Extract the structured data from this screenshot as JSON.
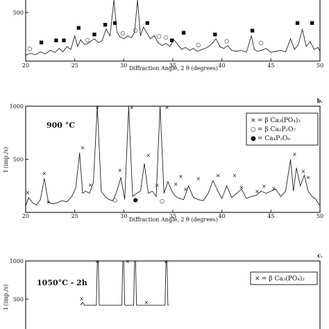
{
  "chart_data": [
    {
      "type": "line",
      "panel_label": "",
      "xlabel": "Diffraction Angle, 2 θ (degrees)",
      "ylabel": "",
      "xlim": [
        20,
        50
      ],
      "ylim": [
        0,
        700
      ],
      "x_ticks": [
        20,
        25,
        30,
        35,
        40,
        45,
        50
      ],
      "y_ticks": [
        500
      ],
      "temperature_label": "",
      "series": [
        {
          "x": [
            20,
            20.5,
            21,
            21.5,
            22,
            22.5,
            23,
            23.4,
            23.8,
            24.2,
            24.6,
            25.0,
            25.3,
            25.6,
            26.0,
            26.3,
            26.6,
            27.0,
            27.4,
            27.8,
            28.2,
            28.6,
            29.0,
            29.3,
            29.6,
            30.0,
            30.4,
            30.8,
            31.1,
            31.4,
            31.7,
            32.0,
            32.3,
            32.7,
            33.1,
            33.5,
            33.9,
            34.3,
            34.7,
            35.1,
            35.5,
            35.9,
            36.3,
            36.7,
            37.1,
            37.5,
            38.0,
            38.5,
            39.0,
            39.4,
            39.8,
            40.2,
            40.6,
            41.0,
            41.5,
            42.0,
            42.5,
            43.0,
            43.3,
            43.6,
            44.0,
            44.5,
            45.0,
            45.5,
            46.0,
            46.5,
            47.0,
            47.4,
            47.8,
            48.2,
            48.6,
            49.0,
            49.4,
            49.8,
            50
          ],
          "values": [
            60,
            80,
            65,
            95,
            75,
            110,
            90,
            130,
            95,
            150,
            120,
            260,
            150,
            220,
            170,
            180,
            200,
            230,
            190,
            210,
            330,
            260,
            700,
            300,
            250,
            230,
            260,
            240,
            300,
            650,
            260,
            350,
            300,
            230,
            260,
            190,
            160,
            180,
            150,
            220,
            170,
            120,
            140,
            110,
            130,
            100,
            120,
            140,
            180,
            230,
            150,
            130,
            160,
            110,
            100,
            110,
            90,
            260,
            120,
            100,
            110,
            130,
            90,
            100,
            110,
            95,
            230,
            120,
            170,
            330,
            150,
            200,
            120,
            140,
            100
          ]
        }
      ],
      "markers": [
        {
          "symbol": "■",
          "x": 21.6,
          "y": 180
        },
        {
          "symbol": "■",
          "x": 23.1,
          "y": 200
        },
        {
          "symbol": "■",
          "x": 23.9,
          "y": 200
        },
        {
          "symbol": "■",
          "x": 25.4,
          "y": 330
        },
        {
          "symbol": "■",
          "x": 27.0,
          "y": 260
        },
        {
          "symbol": "■",
          "x": 28.1,
          "y": 360
        },
        {
          "symbol": "■",
          "x": 29.1,
          "y": 380
        },
        {
          "symbol": "■",
          "x": 32.4,
          "y": 380
        },
        {
          "symbol": "■",
          "x": 34.9,
          "y": 200
        },
        {
          "symbol": "■",
          "x": 36.1,
          "y": 280
        },
        {
          "symbol": "■",
          "x": 39.3,
          "y": 260
        },
        {
          "symbol": "■",
          "x": 43.1,
          "y": 300
        },
        {
          "symbol": "■",
          "x": 47.7,
          "y": 380
        },
        {
          "symbol": "■",
          "x": 49.2,
          "y": 380
        },
        {
          "symbol": "○",
          "x": 20.4,
          "y": 110
        },
        {
          "symbol": "○",
          "x": 26.3,
          "y": 200
        },
        {
          "symbol": "○",
          "x": 29.9,
          "y": 270
        },
        {
          "symbol": "○",
          "x": 31.2,
          "y": 300
        },
        {
          "symbol": "○",
          "x": 33.6,
          "y": 240
        },
        {
          "symbol": "○",
          "x": 34.3,
          "y": 230
        },
        {
          "symbol": "○",
          "x": 37.6,
          "y": 150
        },
        {
          "symbol": "○",
          "x": 40.5,
          "y": 190
        },
        {
          "symbol": "○",
          "x": 44.0,
          "y": 170
        }
      ],
      "legend": []
    },
    {
      "type": "line",
      "panel_label": "b.",
      "xlabel": "Diffraction Angle, 2 θ (degrees)",
      "ylabel": "I (imp./s)",
      "xlim": [
        20,
        50
      ],
      "ylim": [
        0,
        1000
      ],
      "x_ticks": [
        20,
        25,
        30,
        35,
        40,
        45,
        50
      ],
      "y_ticks": [
        500,
        1000
      ],
      "temperature_label": "900 °C",
      "series": [
        {
          "x": [
            20,
            20.3,
            20.7,
            21.1,
            21.5,
            21.9,
            22.3,
            22.7,
            23.2,
            23.7,
            24.2,
            24.7,
            25.1,
            25.5,
            25.8,
            26.1,
            26.5,
            26.9,
            27.3,
            27.7,
            28.1,
            28.5,
            28.9,
            29.3,
            29.7,
            30.1,
            30.5,
            30.9,
            31.3,
            31.7,
            32.1,
            32.5,
            32.9,
            33.3,
            33.7,
            34.1,
            34.5,
            34.9,
            35.3,
            35.7,
            36.1,
            36.6,
            37.1,
            37.6,
            38.1,
            38.6,
            39.1,
            39.6,
            40.0,
            40.5,
            41.0,
            41.5,
            42.0,
            42.5,
            43.0,
            43.5,
            44.0,
            44.5,
            45.0,
            45.5,
            46.0,
            46.5,
            47.0,
            47.3,
            47.6,
            48.0,
            48.4,
            48.8,
            49.2,
            49.6,
            50
          ],
          "values": [
            60,
            140,
            90,
            70,
            120,
            320,
            100,
            80,
            90,
            110,
            100,
            150,
            230,
            560,
            180,
            200,
            180,
            280,
            1000,
            200,
            150,
            120,
            110,
            200,
            330,
            120,
            1000,
            150,
            180,
            200,
            460,
            180,
            200,
            150,
            1000,
            180,
            290,
            200,
            150,
            130,
            120,
            250,
            140,
            120,
            110,
            180,
            300,
            200,
            130,
            250,
            140,
            180,
            220,
            130,
            150,
            160,
            200,
            180,
            200,
            220,
            150,
            200,
            500,
            200,
            420,
            250,
            350,
            200,
            150,
            120,
            60
          ]
        }
      ],
      "markers": [
        {
          "symbol": "×",
          "x": 20.2,
          "y": 170
        },
        {
          "symbol": "×",
          "x": 21.9,
          "y": 350
        },
        {
          "symbol": "×",
          "x": 22.3,
          "y": 80
        },
        {
          "symbol": "×",
          "x": 25.8,
          "y": 590
        },
        {
          "symbol": "×",
          "x": 26.6,
          "y": 240
        },
        {
          "symbol": "×",
          "x": 27.3,
          "y": 970
        },
        {
          "symbol": "×",
          "x": 29.6,
          "y": 380
        },
        {
          "symbol": "×",
          "x": 30.8,
          "y": 970
        },
        {
          "symbol": "×",
          "x": 32.5,
          "y": 520
        },
        {
          "symbol": "×",
          "x": 33.4,
          "y": 240
        },
        {
          "symbol": "×",
          "x": 34.4,
          "y": 970
        },
        {
          "symbol": "×",
          "x": 35.3,
          "y": 250
        },
        {
          "symbol": "×",
          "x": 35.8,
          "y": 320
        },
        {
          "symbol": "×",
          "x": 36.3,
          "y": 200
        },
        {
          "symbol": "×",
          "x": 37.6,
          "y": 300
        },
        {
          "symbol": "×",
          "x": 39.6,
          "y": 330
        },
        {
          "symbol": "×",
          "x": 41.3,
          "y": 330
        },
        {
          "symbol": "×",
          "x": 42.0,
          "y": 220
        },
        {
          "symbol": "×",
          "x": 43.6,
          "y": 180
        },
        {
          "symbol": "×",
          "x": 44.3,
          "y": 230
        },
        {
          "symbol": "×",
          "x": 45.3,
          "y": 210
        },
        {
          "symbol": "×",
          "x": 47.4,
          "y": 530
        },
        {
          "symbol": "×",
          "x": 48.3,
          "y": 370
        },
        {
          "symbol": "×",
          "x": 48.8,
          "y": 310
        },
        {
          "symbol": "○",
          "x": 29.1,
          "y": 100
        },
        {
          "symbol": "○",
          "x": 33.9,
          "y": 90
        },
        {
          "symbol": "●",
          "x": 31.2,
          "y": 100
        }
      ],
      "legend": [
        {
          "marker": "×",
          "text": "= β Ca₃(PO₄)₂"
        },
        {
          "marker": "○",
          "text": "= β Ca₂P₂O₇"
        },
        {
          "marker": "●",
          "text": "= Ca₄P₂O₉"
        }
      ]
    },
    {
      "type": "line",
      "panel_label": "c.",
      "xlabel": "",
      "ylabel": "I (imp./s)",
      "xlim": [
        20,
        50
      ],
      "ylim": [
        0,
        1000
      ],
      "x_ticks": [],
      "y_ticks": [
        500,
        1000
      ],
      "temperature_label": "1050°C - 2h",
      "series": [
        {
          "x": [
            25.6,
            25.7,
            25.8,
            25.9,
            26.0,
            27.2,
            27.3,
            27.4,
            27.5,
            29.8,
            29.9,
            30.0,
            30.1,
            30.2,
            31.0,
            31.1,
            31.2,
            31.3,
            31.4,
            34.2,
            34.3,
            34.4,
            34.5,
            34.6
          ],
          "values": [
            420,
            440,
            460,
            440,
            420,
            420,
            1000,
            1000,
            420,
            420,
            1000,
            1000,
            420,
            420,
            420,
            1000,
            1000,
            420,
            420,
            420,
            1000,
            1000,
            420,
            420
          ]
        }
      ],
      "markers": [
        {
          "symbol": "×",
          "x": 25.7,
          "y": 480
        },
        {
          "symbol": "×",
          "x": 27.3,
          "y": 970
        },
        {
          "symbol": "×",
          "x": 30.4,
          "y": 970
        },
        {
          "symbol": "×",
          "x": 32.3,
          "y": 430
        },
        {
          "symbol": "×",
          "x": 34.3,
          "y": 970
        }
      ],
      "legend": [
        {
          "marker": "×",
          "text": "= β Ca₃(PO₄)₂"
        }
      ]
    }
  ]
}
